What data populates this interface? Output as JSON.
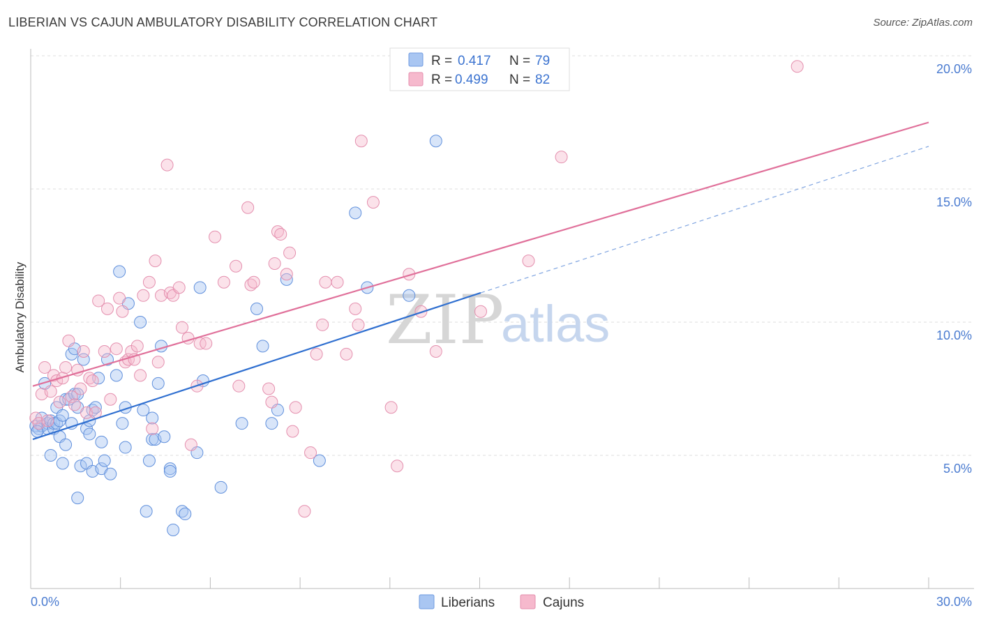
{
  "title": "LIBERIAN VS CAJUN AMBULATORY DISABILITY CORRELATION CHART",
  "source": "Source: ZipAtlas.com",
  "colors": {
    "blue": "#3f7bd8",
    "blue_fill": "#a9c6f2",
    "pink": "#e0709a",
    "pink_fill": "#f6b9cd",
    "tick": "#4a7bd0"
  },
  "chart_data": {
    "type": "scatter",
    "title": "LIBERIAN VS CAJUN AMBULATORY DISABILITY CORRELATION CHART",
    "xlabel": "",
    "ylabel": "Ambulatory Disability",
    "xlim": [
      0,
      30
    ],
    "ylim": [
      0,
      20.5
    ],
    "x_tick_labels": [
      "0.0%",
      "30.0%"
    ],
    "y_ticks": [
      5,
      10,
      15,
      20
    ],
    "y_tick_labels": [
      "5.0%",
      "10.0%",
      "15.0%",
      "20.0%"
    ],
    "grid": true,
    "legend_placement": "top-center",
    "watermark": {
      "zip": "ZIP",
      "atlas": "atlas"
    },
    "legend": [
      {
        "r_label": "R =",
        "r_value": "0.417",
        "n_label": "N =",
        "n_value": "79"
      },
      {
        "r_label": "R =",
        "r_value": "0.499",
        "n_label": "N =",
        "n_value": "82"
      }
    ],
    "series": [
      {
        "name": "Liberians",
        "color": "#3f7bd8",
        "trend": {
          "x0": 0,
          "y0": 5.6,
          "x1": 15,
          "y1": 11.1,
          "dash_to_x": 30
        },
        "points": [
          [
            0.1,
            6.1
          ],
          [
            0.2,
            6.0
          ],
          [
            0.3,
            6.4
          ],
          [
            0.3,
            6.1
          ],
          [
            0.4,
            7.7
          ],
          [
            0.5,
            6.2
          ],
          [
            0.5,
            6.0
          ],
          [
            0.6,
            6.3
          ],
          [
            0.6,
            5.0
          ],
          [
            0.7,
            6.0
          ],
          [
            0.7,
            6.2
          ],
          [
            0.8,
            6.8
          ],
          [
            0.8,
            6.2
          ],
          [
            0.9,
            5.7
          ],
          [
            0.9,
            6.3
          ],
          [
            1.0,
            4.7
          ],
          [
            1.0,
            6.5
          ],
          [
            1.1,
            5.4
          ],
          [
            1.1,
            7.1
          ],
          [
            1.2,
            7.1
          ],
          [
            1.3,
            6.2
          ],
          [
            1.3,
            8.8
          ],
          [
            1.4,
            7.3
          ],
          [
            1.4,
            9.0
          ],
          [
            1.5,
            3.4
          ],
          [
            1.5,
            6.8
          ],
          [
            1.5,
            7.3
          ],
          [
            1.6,
            4.6
          ],
          [
            1.7,
            8.6
          ],
          [
            1.8,
            4.7
          ],
          [
            1.8,
            6.0
          ],
          [
            1.9,
            5.8
          ],
          [
            1.9,
            6.3
          ],
          [
            2.0,
            6.7
          ],
          [
            2.0,
            4.4
          ],
          [
            2.1,
            6.8
          ],
          [
            2.2,
            7.9
          ],
          [
            2.3,
            4.5
          ],
          [
            2.3,
            5.5
          ],
          [
            2.4,
            4.8
          ],
          [
            2.5,
            8.6
          ],
          [
            2.6,
            4.3
          ],
          [
            2.8,
            8.0
          ],
          [
            2.9,
            11.9
          ],
          [
            3.0,
            6.2
          ],
          [
            3.1,
            6.8
          ],
          [
            3.1,
            5.3
          ],
          [
            3.2,
            10.7
          ],
          [
            3.6,
            10.0
          ],
          [
            3.7,
            6.7
          ],
          [
            3.8,
            2.9
          ],
          [
            3.9,
            4.8
          ],
          [
            4.0,
            6.4
          ],
          [
            4.0,
            5.6
          ],
          [
            4.1,
            5.6
          ],
          [
            4.2,
            7.7
          ],
          [
            4.3,
            9.1
          ],
          [
            4.4,
            5.7
          ],
          [
            4.6,
            4.5
          ],
          [
            4.6,
            4.4
          ],
          [
            4.7,
            2.2
          ],
          [
            5.0,
            2.9
          ],
          [
            5.1,
            2.8
          ],
          [
            5.5,
            5.1
          ],
          [
            5.6,
            11.3
          ],
          [
            5.7,
            7.8
          ],
          [
            6.3,
            3.8
          ],
          [
            7.0,
            6.2
          ],
          [
            7.5,
            10.5
          ],
          [
            7.7,
            9.1
          ],
          [
            8.0,
            6.2
          ],
          [
            8.2,
            6.7
          ],
          [
            8.5,
            11.6
          ],
          [
            9.6,
            4.8
          ],
          [
            10.8,
            14.1
          ],
          [
            11.2,
            11.3
          ],
          [
            12.6,
            11.0
          ],
          [
            13.5,
            16.8
          ],
          [
            0.15,
            5.9
          ]
        ]
      },
      {
        "name": "Cajuns",
        "color": "#e0709a",
        "trend": {
          "x0": 0,
          "y0": 7.6,
          "x1": 30,
          "y1": 17.5
        },
        "points": [
          [
            0.1,
            6.4
          ],
          [
            0.2,
            6.2
          ],
          [
            0.3,
            7.3
          ],
          [
            0.4,
            8.3
          ],
          [
            0.5,
            6.3
          ],
          [
            0.6,
            7.4
          ],
          [
            0.7,
            8.0
          ],
          [
            0.8,
            7.8
          ],
          [
            0.9,
            7.0
          ],
          [
            1.0,
            7.9
          ],
          [
            1.1,
            8.3
          ],
          [
            1.2,
            9.3
          ],
          [
            1.3,
            7.2
          ],
          [
            1.4,
            6.9
          ],
          [
            1.5,
            8.2
          ],
          [
            1.6,
            7.5
          ],
          [
            1.7,
            8.9
          ],
          [
            1.8,
            6.6
          ],
          [
            1.9,
            7.9
          ],
          [
            2.0,
            7.8
          ],
          [
            2.1,
            6.6
          ],
          [
            2.2,
            10.8
          ],
          [
            2.4,
            8.9
          ],
          [
            2.5,
            10.5
          ],
          [
            2.6,
            7.1
          ],
          [
            2.8,
            9.0
          ],
          [
            2.9,
            10.9
          ],
          [
            3.0,
            10.4
          ],
          [
            3.1,
            8.5
          ],
          [
            3.2,
            8.6
          ],
          [
            3.3,
            8.9
          ],
          [
            3.4,
            8.6
          ],
          [
            3.5,
            9.1
          ],
          [
            3.6,
            8.0
          ],
          [
            3.7,
            11.0
          ],
          [
            3.9,
            11.5
          ],
          [
            4.0,
            6.0
          ],
          [
            4.1,
            12.3
          ],
          [
            4.2,
            8.5
          ],
          [
            4.3,
            11.0
          ],
          [
            4.5,
            15.9
          ],
          [
            4.6,
            11.1
          ],
          [
            4.7,
            11.0
          ],
          [
            4.9,
            11.3
          ],
          [
            5.0,
            9.8
          ],
          [
            5.2,
            9.4
          ],
          [
            5.3,
            5.4
          ],
          [
            5.5,
            7.6
          ],
          [
            5.6,
            9.2
          ],
          [
            5.8,
            9.2
          ],
          [
            6.1,
            13.2
          ],
          [
            6.4,
            11.5
          ],
          [
            6.8,
            12.1
          ],
          [
            6.9,
            7.6
          ],
          [
            7.2,
            14.3
          ],
          [
            7.3,
            11.4
          ],
          [
            7.4,
            11.5
          ],
          [
            7.9,
            7.5
          ],
          [
            8.0,
            7.0
          ],
          [
            8.1,
            12.2
          ],
          [
            8.2,
            13.4
          ],
          [
            8.3,
            13.3
          ],
          [
            8.5,
            11.8
          ],
          [
            8.6,
            12.6
          ],
          [
            8.7,
            5.9
          ],
          [
            8.8,
            6.8
          ],
          [
            9.1,
            2.9
          ],
          [
            9.3,
            5.1
          ],
          [
            9.5,
            8.8
          ],
          [
            9.7,
            9.9
          ],
          [
            9.8,
            11.5
          ],
          [
            10.2,
            11.5
          ],
          [
            10.5,
            8.8
          ],
          [
            10.8,
            10.5
          ],
          [
            10.9,
            9.9
          ],
          [
            11.0,
            16.8
          ],
          [
            11.4,
            14.5
          ],
          [
            12.0,
            6.8
          ],
          [
            12.2,
            4.6
          ],
          [
            12.6,
            11.8
          ],
          [
            13.0,
            10.4
          ],
          [
            13.5,
            8.9
          ]
        ]
      }
    ],
    "extra_points": {
      "Cajuns": [
        [
          15.0,
          10.4
        ],
        [
          16.6,
          12.3
        ],
        [
          17.7,
          16.2
        ],
        [
          25.6,
          19.6
        ]
      ]
    }
  }
}
